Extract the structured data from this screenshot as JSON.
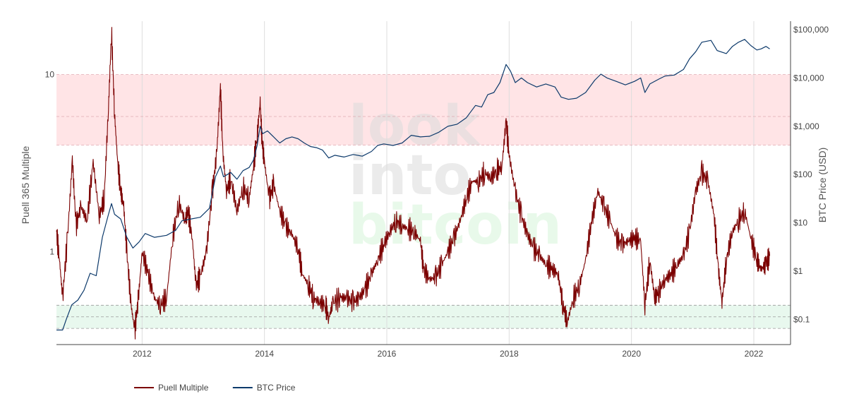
{
  "chart_data": {
    "type": "line",
    "title": "",
    "watermark": [
      "look",
      "into",
      "bitcoin"
    ],
    "x_ticks": [
      "2012",
      "2014",
      "2016",
      "2018",
      "2020",
      "2022"
    ],
    "x_range": [
      2010.6,
      2022.6
    ],
    "y_left": {
      "label": "Puell 365 Multiple",
      "scale": "log",
      "ticks": [
        "1",
        "10"
      ],
      "range": [
        0.3,
        20
      ]
    },
    "y_right": {
      "label": "BTC Price (USD)",
      "scale": "log",
      "ticks": [
        "$0.1",
        "$1",
        "$10",
        "$100",
        "$1,000",
        "$10,000",
        "$100,000"
      ],
      "range": [
        0.03,
        150000
      ]
    },
    "bands": [
      {
        "name": "high",
        "color": "#ffe4e6",
        "puell_range": [
          4.0,
          10.0
        ],
        "dashed_lines": [
          4.0,
          5.8,
          10.0
        ]
      },
      {
        "name": "low",
        "color": "#e8f8ee",
        "puell_range": [
          0.37,
          0.5
        ],
        "dashed_lines": [
          0.37,
          0.43,
          0.5
        ]
      }
    ],
    "grid": "vertical",
    "legend_position": "bottom-left",
    "series": [
      {
        "name": "Puell Multiple",
        "axis": "left",
        "color": "#7b0000",
        "points": [
          [
            2010.6,
            1.3
          ],
          [
            2010.65,
            0.9
          ],
          [
            2010.7,
            0.55
          ],
          [
            2010.78,
            1.2
          ],
          [
            2010.86,
            3.3
          ],
          [
            2010.92,
            1.4
          ],
          [
            2011.0,
            1.8
          ],
          [
            2011.1,
            1.5
          ],
          [
            2011.2,
            3.2
          ],
          [
            2011.3,
            1.6
          ],
          [
            2011.38,
            2.0
          ],
          [
            2011.45,
            6.5
          ],
          [
            2011.5,
            17.5
          ],
          [
            2011.55,
            6.0
          ],
          [
            2011.6,
            3.2
          ],
          [
            2011.65,
            2.2
          ],
          [
            2011.7,
            1.8
          ],
          [
            2011.75,
            1.0
          ],
          [
            2011.82,
            0.5
          ],
          [
            2011.88,
            0.36
          ],
          [
            2011.94,
            0.55
          ],
          [
            2012.0,
            1.0
          ],
          [
            2012.1,
            0.75
          ],
          [
            2012.2,
            0.55
          ],
          [
            2012.3,
            0.5
          ],
          [
            2012.4,
            0.55
          ],
          [
            2012.5,
            1.2
          ],
          [
            2012.6,
            1.9
          ],
          [
            2012.7,
            1.5
          ],
          [
            2012.75,
            1.7
          ],
          [
            2012.82,
            1.2
          ],
          [
            2012.88,
            0.65
          ],
          [
            2012.95,
            0.72
          ],
          [
            2013.05,
            1.0
          ],
          [
            2013.15,
            2.2
          ],
          [
            2013.22,
            3.6
          ],
          [
            2013.28,
            8.5
          ],
          [
            2013.32,
            3.6
          ],
          [
            2013.38,
            2.2
          ],
          [
            2013.45,
            2.6
          ],
          [
            2013.55,
            1.7
          ],
          [
            2013.65,
            2.3
          ],
          [
            2013.75,
            2.0
          ],
          [
            2013.82,
            3.0
          ],
          [
            2013.88,
            4.5
          ],
          [
            2013.93,
            7.0
          ],
          [
            2013.96,
            4.2
          ],
          [
            2014.0,
            3.2
          ],
          [
            2014.08,
            2.0
          ],
          [
            2014.15,
            2.4
          ],
          [
            2014.25,
            1.7
          ],
          [
            2014.35,
            1.4
          ],
          [
            2014.45,
            1.25
          ],
          [
            2014.55,
            1.05
          ],
          [
            2014.62,
            0.75
          ],
          [
            2014.72,
            0.65
          ],
          [
            2014.8,
            0.55
          ],
          [
            2014.9,
            0.52
          ],
          [
            2015.0,
            0.5
          ],
          [
            2015.05,
            0.42
          ],
          [
            2015.12,
            0.52
          ],
          [
            2015.25,
            0.55
          ],
          [
            2015.35,
            0.55
          ],
          [
            2015.45,
            0.52
          ],
          [
            2015.55,
            0.55
          ],
          [
            2015.65,
            0.62
          ],
          [
            2015.75,
            0.75
          ],
          [
            2015.85,
            0.9
          ],
          [
            2015.95,
            1.1
          ],
          [
            2016.05,
            1.3
          ],
          [
            2016.15,
            1.5
          ],
          [
            2016.25,
            1.4
          ],
          [
            2016.35,
            1.35
          ],
          [
            2016.45,
            1.3
          ],
          [
            2016.55,
            1.15
          ],
          [
            2016.6,
            0.8
          ],
          [
            2016.7,
            0.7
          ],
          [
            2016.8,
            0.72
          ],
          [
            2016.9,
            0.85
          ],
          [
            2017.0,
            1.0
          ],
          [
            2017.1,
            1.2
          ],
          [
            2017.2,
            1.5
          ],
          [
            2017.3,
            2.0
          ],
          [
            2017.4,
            2.5
          ],
          [
            2017.5,
            2.5
          ],
          [
            2017.6,
            2.8
          ],
          [
            2017.7,
            2.6
          ],
          [
            2017.8,
            2.9
          ],
          [
            2017.88,
            3.0
          ],
          [
            2017.95,
            5.5
          ],
          [
            2018.0,
            3.5
          ],
          [
            2018.1,
            2.2
          ],
          [
            2018.2,
            1.6
          ],
          [
            2018.3,
            1.25
          ],
          [
            2018.4,
            1.05
          ],
          [
            2018.5,
            0.95
          ],
          [
            2018.6,
            0.85
          ],
          [
            2018.7,
            0.8
          ],
          [
            2018.8,
            0.75
          ],
          [
            2018.88,
            0.5
          ],
          [
            2018.95,
            0.4
          ],
          [
            2019.05,
            0.55
          ],
          [
            2019.15,
            0.65
          ],
          [
            2019.25,
            0.9
          ],
          [
            2019.35,
            1.5
          ],
          [
            2019.45,
            2.2
          ],
          [
            2019.55,
            1.8
          ],
          [
            2019.65,
            1.5
          ],
          [
            2019.75,
            1.2
          ],
          [
            2019.85,
            1.1
          ],
          [
            2019.95,
            1.15
          ],
          [
            2020.05,
            1.2
          ],
          [
            2020.15,
            1.15
          ],
          [
            2020.22,
            0.5
          ],
          [
            2020.3,
            0.9
          ],
          [
            2020.38,
            0.55
          ],
          [
            2020.45,
            0.6
          ],
          [
            2020.55,
            0.7
          ],
          [
            2020.65,
            0.75
          ],
          [
            2020.75,
            0.85
          ],
          [
            2020.85,
            0.95
          ],
          [
            2020.95,
            1.3
          ],
          [
            2021.05,
            2.2
          ],
          [
            2021.15,
            2.8
          ],
          [
            2021.25,
            2.5
          ],
          [
            2021.35,
            1.6
          ],
          [
            2021.42,
            0.8
          ],
          [
            2021.48,
            0.52
          ],
          [
            2021.55,
            0.9
          ],
          [
            2021.65,
            1.3
          ],
          [
            2021.75,
            1.5
          ],
          [
            2021.85,
            1.7
          ],
          [
            2021.95,
            1.2
          ],
          [
            2022.05,
            0.9
          ],
          [
            2022.12,
            0.8
          ],
          [
            2022.2,
            0.85
          ],
          [
            2022.26,
            0.95
          ]
        ]
      },
      {
        "name": "BTC Price",
        "axis": "right",
        "color": "#0d3a6b",
        "points": [
          [
            2010.6,
            0.06
          ],
          [
            2010.7,
            0.06
          ],
          [
            2010.76,
            0.1
          ],
          [
            2010.85,
            0.2
          ],
          [
            2010.95,
            0.25
          ],
          [
            2011.05,
            0.4
          ],
          [
            2011.15,
            0.9
          ],
          [
            2011.25,
            0.8
          ],
          [
            2011.35,
            5.0
          ],
          [
            2011.45,
            15.0
          ],
          [
            2011.5,
            25.0
          ],
          [
            2011.55,
            15.0
          ],
          [
            2011.65,
            12.0
          ],
          [
            2011.75,
            5.0
          ],
          [
            2011.85,
            3.0
          ],
          [
            2011.95,
            4.0
          ],
          [
            2012.05,
            6.0
          ],
          [
            2012.2,
            5.0
          ],
          [
            2012.4,
            5.5
          ],
          [
            2012.55,
            7.0
          ],
          [
            2012.65,
            11.0
          ],
          [
            2012.8,
            12.0
          ],
          [
            2012.95,
            13.0
          ],
          [
            2013.1,
            20.0
          ],
          [
            2013.2,
            90.0
          ],
          [
            2013.28,
            150.0
          ],
          [
            2013.33,
            90.0
          ],
          [
            2013.45,
            110.0
          ],
          [
            2013.55,
            80.0
          ],
          [
            2013.65,
            120.0
          ],
          [
            2013.75,
            140.0
          ],
          [
            2013.82,
            200.0
          ],
          [
            2013.88,
            400.0
          ],
          [
            2013.93,
            1000.0
          ],
          [
            2013.97,
            700.0
          ],
          [
            2014.05,
            800.0
          ],
          [
            2014.15,
            600.0
          ],
          [
            2014.25,
            450.0
          ],
          [
            2014.35,
            550.0
          ],
          [
            2014.45,
            600.0
          ],
          [
            2014.55,
            550.0
          ],
          [
            2014.65,
            450.0
          ],
          [
            2014.75,
            380.0
          ],
          [
            2014.85,
            360.0
          ],
          [
            2014.95,
            320.0
          ],
          [
            2015.05,
            220.0
          ],
          [
            2015.15,
            250.0
          ],
          [
            2015.3,
            230.0
          ],
          [
            2015.45,
            260.0
          ],
          [
            2015.6,
            240.0
          ],
          [
            2015.75,
            300.0
          ],
          [
            2015.85,
            400.0
          ],
          [
            2015.95,
            430.0
          ],
          [
            2016.1,
            400.0
          ],
          [
            2016.25,
            450.0
          ],
          [
            2016.4,
            650.0
          ],
          [
            2016.55,
            600.0
          ],
          [
            2016.7,
            620.0
          ],
          [
            2016.85,
            750.0
          ],
          [
            2017.0,
            1000.0
          ],
          [
            2017.15,
            1100.0
          ],
          [
            2017.3,
            1500.0
          ],
          [
            2017.45,
            2700.0
          ],
          [
            2017.55,
            2500.0
          ],
          [
            2017.65,
            4500.0
          ],
          [
            2017.75,
            5000.0
          ],
          [
            2017.85,
            8000.0
          ],
          [
            2017.95,
            19000.0
          ],
          [
            2018.02,
            14000.0
          ],
          [
            2018.1,
            8000.0
          ],
          [
            2018.2,
            10000.0
          ],
          [
            2018.3,
            8000.0
          ],
          [
            2018.45,
            6500.0
          ],
          [
            2018.6,
            7500.0
          ],
          [
            2018.75,
            6500.0
          ],
          [
            2018.85,
            4000.0
          ],
          [
            2018.97,
            3600.0
          ],
          [
            2019.1,
            3800.0
          ],
          [
            2019.25,
            5000.0
          ],
          [
            2019.4,
            9000.0
          ],
          [
            2019.5,
            12000.0
          ],
          [
            2019.6,
            10000.0
          ],
          [
            2019.75,
            8500.0
          ],
          [
            2019.9,
            7200.0
          ],
          [
            2020.05,
            8500.0
          ],
          [
            2020.15,
            10000.0
          ],
          [
            2020.22,
            5000.0
          ],
          [
            2020.3,
            7500.0
          ],
          [
            2020.45,
            9500.0
          ],
          [
            2020.55,
            11000.0
          ],
          [
            2020.7,
            11500.0
          ],
          [
            2020.85,
            15000.0
          ],
          [
            2020.95,
            25000.0
          ],
          [
            2021.05,
            35000.0
          ],
          [
            2021.15,
            55000.0
          ],
          [
            2021.3,
            60000.0
          ],
          [
            2021.4,
            37000.0
          ],
          [
            2021.55,
            32000.0
          ],
          [
            2021.65,
            45000.0
          ],
          [
            2021.75,
            55000.0
          ],
          [
            2021.85,
            63000.0
          ],
          [
            2021.95,
            47000.0
          ],
          [
            2022.05,
            38000.0
          ],
          [
            2022.12,
            40000.0
          ],
          [
            2022.2,
            45000.0
          ],
          [
            2022.26,
            40000.0
          ]
        ]
      }
    ]
  }
}
